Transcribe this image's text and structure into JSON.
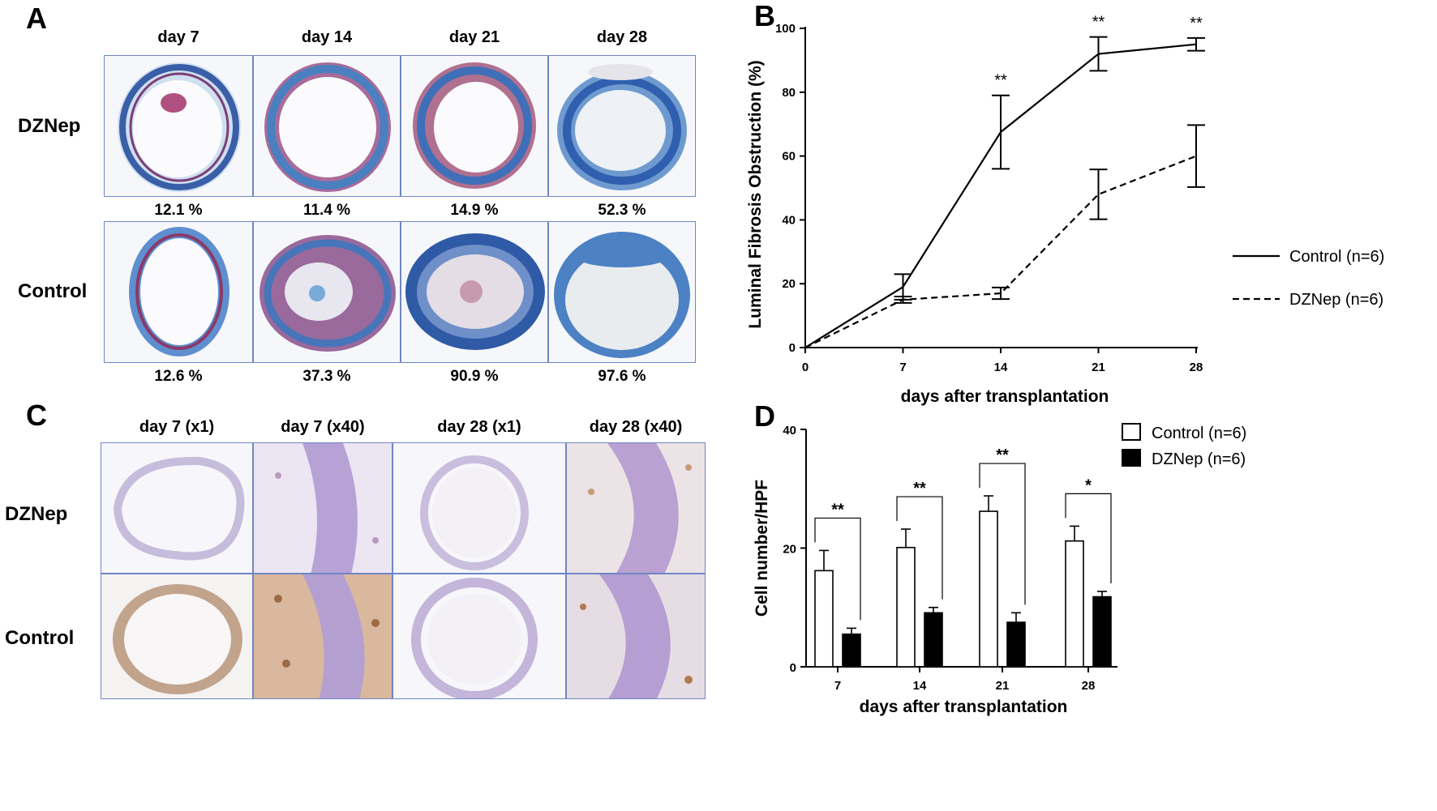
{
  "panel_a": {
    "letter": "A",
    "columns": [
      "day 7",
      "day 14",
      "day 21",
      "day 28"
    ],
    "rows": [
      {
        "label": "DZNep",
        "percents": [
          "12.1 %",
          "11.4 %",
          "14.9 %",
          "52.3 %"
        ]
      },
      {
        "label": "Control",
        "percents": [
          "12.6 %",
          "37.3 %",
          "90.9 %",
          "97.6 %"
        ]
      }
    ]
  },
  "panel_c": {
    "letter": "C",
    "columns": [
      "day 7 (x1)",
      "day 7 (x40)",
      "day 28 (x1)",
      "day 28 (x40)"
    ],
    "rows": [
      "DZNep",
      "Control"
    ]
  },
  "chart_data": [
    {
      "panel": "B",
      "type": "line",
      "xlabel": "days after transplantation",
      "ylabel": "Luminal Fibrosis Obstruction (%)",
      "xlim": [
        0,
        28
      ],
      "ylim": [
        0,
        100
      ],
      "xticks": [
        "0",
        "7",
        "14",
        "21",
        "28"
      ],
      "yticks": [
        "0",
        "20",
        "40",
        "60",
        "80",
        "100"
      ],
      "x": [
        0,
        7,
        14,
        21,
        28
      ],
      "series": [
        {
          "name": "Control (n=6)",
          "style": "solid",
          "values": [
            0,
            19,
            67.5,
            92,
            95
          ],
          "errors": [
            0,
            4,
            11.5,
            5.3,
            2
          ]
        },
        {
          "name": "DZNep (n=6)",
          "style": "dashed",
          "values": [
            0,
            15,
            17,
            48,
            60
          ],
          "errors": [
            0,
            1,
            1.8,
            7.8,
            9.7
          ]
        }
      ],
      "annotations": [
        {
          "x": 14,
          "text": "**"
        },
        {
          "x": 21,
          "text": "**"
        },
        {
          "x": 28,
          "text": "**"
        }
      ]
    },
    {
      "panel": "D",
      "type": "bar",
      "xlabel": "days after transplantation",
      "ylabel": "Cell number/HPF",
      "ylim": [
        0,
        40
      ],
      "yticks": [
        "0",
        "20",
        "40"
      ],
      "categories": [
        "7",
        "14",
        "21",
        "28"
      ],
      "series": [
        {
          "name": "Control (n=6)",
          "fill": "#ffffff",
          "values": [
            16.2,
            20.1,
            26.2,
            21.2
          ],
          "errors": [
            3.4,
            3.1,
            2.6,
            2.5
          ]
        },
        {
          "name": "DZNep (n=6)",
          "fill": "#000000",
          "values": [
            5.5,
            9.1,
            7.5,
            11.8
          ],
          "errors": [
            1.0,
            0.9,
            1.6,
            0.9
          ]
        }
      ],
      "significance": [
        "**",
        "**",
        "**",
        "*"
      ]
    }
  ]
}
